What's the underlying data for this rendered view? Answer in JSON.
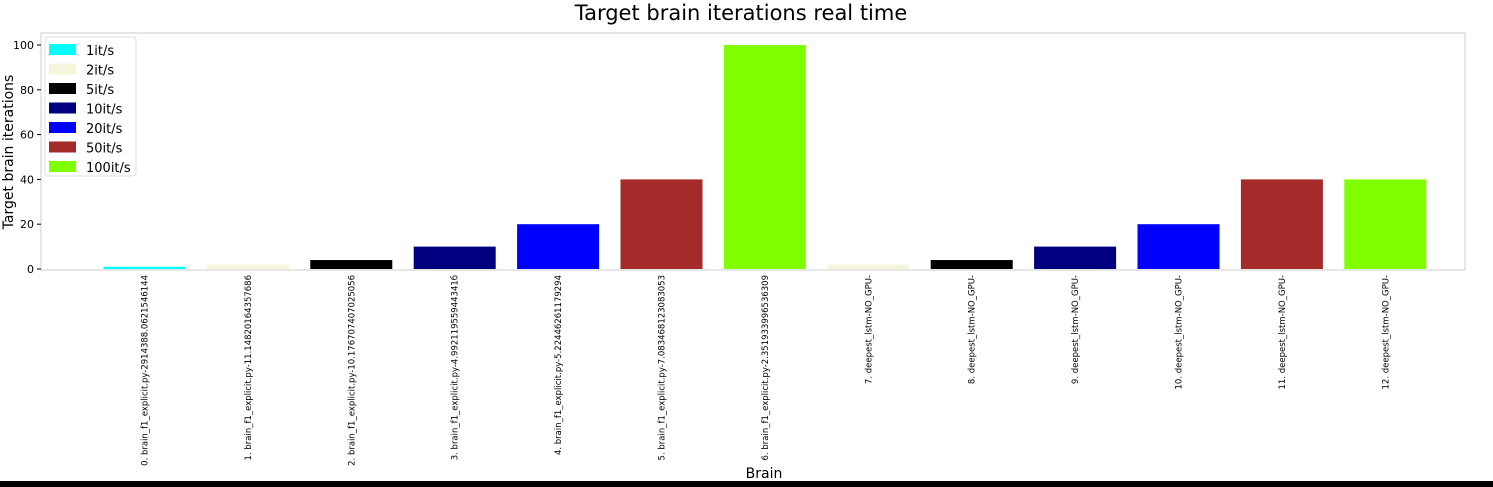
{
  "chart_data": {
    "type": "bar",
    "title": "Target brain iterations real time",
    "xlabel": "Brain",
    "ylabel": "Target brain iterations",
    "ylim": [
      0,
      104
    ],
    "yticks": [
      0,
      20,
      40,
      60,
      80,
      100
    ],
    "categories": [
      "0. brain_f1_explicit.py-2914388.0621546144",
      "1. brain_f1_explicit.py-11.14820164357686",
      "2. brain_f1_explicit.py-10.176707407025056",
      "3. brain_f1_explicit.py-4.99211955944341б",
      "4. brain_f1_explicit.py-5.22446261179294",
      "5. brain_f1_explicit.py-7.083468123083053",
      "6. brain_f1_explicit.py-2.351933996536309",
      "7. deepest_lstm-NO_GPU-",
      "8. deepest_lstm-NO_GPU-",
      "9. deepest_lstm-NO_GPU-",
      "10. deepest_lstm-NO_GPU-",
      "11. deepest_lstm-NO_GPU-",
      "12. deepest_lstm-NO_GPU-"
    ],
    "values": [
      1,
      2,
      4,
      10,
      20,
      40,
      100,
      2,
      4,
      10,
      20,
      40,
      40
    ],
    "bar_colors": [
      "#00ffff",
      "#f5f5dc",
      "#000000",
      "#000080",
      "#0000ff",
      "#a52a2a",
      "#7fff00",
      "#f5f5dc",
      "#000000",
      "#000080",
      "#0000ff",
      "#a52a2a",
      "#7fff00"
    ],
    "legend_position": "top-left",
    "legend": [
      {
        "label": "1it/s",
        "color": "#00ffff"
      },
      {
        "label": "2it/s",
        "color": "#f5f5dc"
      },
      {
        "label": "5it/s",
        "color": "#000000"
      },
      {
        "label": "10it/s",
        "color": "#000080"
      },
      {
        "label": "20it/s",
        "color": "#0000ff"
      },
      {
        "label": "50it/s",
        "color": "#a52a2a"
      },
      {
        "label": "100it/s",
        "color": "#7fff00"
      }
    ]
  }
}
